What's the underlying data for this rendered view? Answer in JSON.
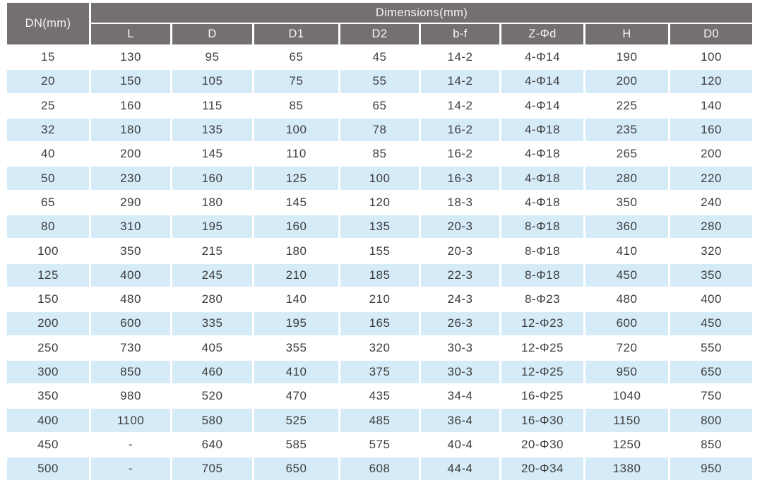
{
  "table": {
    "corner_header": "DN(mm)",
    "group_header": "Dimensions(mm)",
    "columns": [
      "L",
      "D",
      "D1",
      "D2",
      "b-f",
      "Z-Φd",
      "H",
      "D0"
    ],
    "rows": [
      [
        "15",
        "130",
        "95",
        "65",
        "45",
        "14-2",
        "4-Φ14",
        "190",
        "100"
      ],
      [
        "20",
        "150",
        "105",
        "75",
        "55",
        "14-2",
        "4-Φ14",
        "200",
        "120"
      ],
      [
        "25",
        "160",
        "115",
        "85",
        "65",
        "14-2",
        "4-Φ14",
        "225",
        "140"
      ],
      [
        "32",
        "180",
        "135",
        "100",
        "78",
        "16-2",
        "4-Φ18",
        "235",
        "160"
      ],
      [
        "40",
        "200",
        "145",
        "110",
        "85",
        "16-2",
        "4-Φ18",
        "265",
        "200"
      ],
      [
        "50",
        "230",
        "160",
        "125",
        "100",
        "16-3",
        "4-Φ18",
        "280",
        "220"
      ],
      [
        "65",
        "290",
        "180",
        "145",
        "120",
        "18-3",
        "4-Φ18",
        "350",
        "240"
      ],
      [
        "80",
        "310",
        "195",
        "160",
        "135",
        "20-3",
        "8-Φ18",
        "360",
        "280"
      ],
      [
        "100",
        "350",
        "215",
        "180",
        "155",
        "20-3",
        "8-Φ18",
        "410",
        "320"
      ],
      [
        "125",
        "400",
        "245",
        "210",
        "185",
        "22-3",
        "8-Φ18",
        "450",
        "350"
      ],
      [
        "150",
        "480",
        "280",
        "140",
        "210",
        "24-3",
        "8-Φ23",
        "480",
        "400"
      ],
      [
        "200",
        "600",
        "335",
        "195",
        "165",
        "26-3",
        "12-Φ23",
        "600",
        "450"
      ],
      [
        "250",
        "730",
        "405",
        "355",
        "320",
        "30-3",
        "12-Φ25",
        "720",
        "550"
      ],
      [
        "300",
        "850",
        "460",
        "410",
        "375",
        "30-3",
        "12-Φ25",
        "950",
        "650"
      ],
      [
        "350",
        "980",
        "520",
        "470",
        "435",
        "34-4",
        "16-Φ25",
        "1040",
        "750"
      ],
      [
        "400",
        "1100",
        "580",
        "525",
        "485",
        "36-4",
        "16-Φ30",
        "1150",
        "800"
      ],
      [
        "450",
        "-",
        "640",
        "585",
        "575",
        "40-4",
        "20-Φ30",
        "1250",
        "850"
      ],
      [
        "500",
        "-",
        "705",
        "650",
        "608",
        "44-4",
        "20-Φ34",
        "1380",
        "950"
      ]
    ],
    "colors": {
      "header_bg": "#757070",
      "header_text": "#f7f5f5",
      "row_alt_bg": "#d6ebf8",
      "row_bg": "#ffffff",
      "cell_text": "#3d3d3d"
    }
  }
}
